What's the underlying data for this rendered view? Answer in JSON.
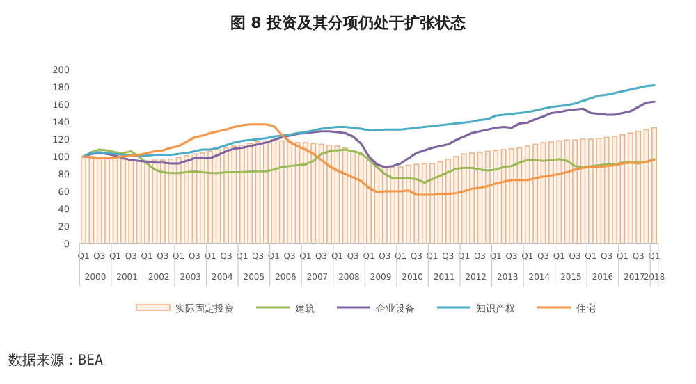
{
  "chart_data": {
    "type": "bar",
    "title": "图 8 投资及其分项仍处于扩张状态",
    "categories": [
      "Q1",
      null,
      "Q3",
      null,
      "Q1",
      null,
      "Q3",
      null,
      "Q1",
      null,
      "Q3",
      null,
      "Q1",
      null,
      "Q3",
      null,
      "Q1",
      null,
      "Q3",
      null,
      "Q1",
      null,
      "Q3",
      null,
      "Q1",
      null,
      "Q3",
      null,
      "Q1",
      null,
      "Q3",
      null,
      "Q1",
      null,
      "Q3",
      null,
      "Q1",
      null,
      "Q3",
      null,
      "Q1",
      null,
      "Q3",
      null,
      "Q1",
      null,
      "Q3",
      null,
      "Q1",
      null,
      "Q3",
      null,
      "Q1",
      null,
      "Q3",
      null,
      "Q1",
      null,
      "Q3",
      null,
      "Q1",
      null,
      "Q3",
      null,
      "Q1",
      null,
      "Q3",
      null,
      "Q1",
      null,
      "Q3",
      null,
      "Q1"
    ],
    "ylim": [
      0,
      200
    ],
    "yticks": [
      0,
      20,
      40,
      60,
      80,
      100,
      120,
      140,
      160,
      180,
      200
    ],
    "legend": "bottom",
    "series": [
      {
        "name": "实际固定投资",
        "color": "#f4b183",
        "values": [
          100,
          100,
          99,
          99,
          98,
          97,
          96,
          95,
          95,
          96,
          96,
          97,
          99,
          101,
          103,
          104,
          106,
          108,
          110,
          112,
          113,
          115,
          117,
          118,
          119,
          118,
          117,
          116,
          116,
          115,
          114,
          113,
          112,
          110,
          107,
          102,
          95,
          91,
          89,
          88,
          88,
          90,
          91,
          92,
          92,
          94,
          97,
          100,
          103,
          104,
          105,
          106,
          107,
          108,
          109,
          110,
          112,
          114,
          116,
          117,
          118,
          119,
          119,
          120,
          120,
          121,
          122,
          123,
          125,
          127,
          129,
          131,
          133
        ]
      },
      {
        "name": "建筑",
        "type": "line",
        "color": "#9bbb59",
        "values": [
          100,
          105,
          108,
          107,
          105,
          104,
          106,
          100,
          92,
          85,
          82,
          81,
          81,
          82,
          83,
          82,
          81,
          81,
          82,
          82,
          82,
          83,
          83,
          83,
          85,
          88,
          89,
          90,
          91,
          95,
          103,
          106,
          107,
          108,
          106,
          104,
          96,
          88,
          80,
          75,
          75,
          75,
          74,
          70,
          74,
          78,
          82,
          86,
          87,
          87,
          85,
          84,
          85,
          88,
          89,
          93,
          96,
          96,
          95,
          96,
          97,
          95,
          89,
          88,
          89,
          90,
          91,
          91,
          93,
          94,
          93,
          94,
          97
        ]
      },
      {
        "name": "企业设备",
        "type": "line",
        "color": "#8064a2",
        "values": [
          100,
          103,
          104,
          103,
          101,
          98,
          96,
          95,
          94,
          93,
          93,
          92,
          92,
          95,
          98,
          99,
          98,
          102,
          106,
          109,
          110,
          112,
          114,
          116,
          119,
          122,
          124,
          126,
          127,
          128,
          129,
          129,
          128,
          127,
          123,
          115,
          100,
          91,
          88,
          89,
          92,
          98,
          104,
          107,
          110,
          112,
          114,
          119,
          123,
          127,
          129,
          131,
          133,
          134,
          133,
          138,
          139,
          143,
          146,
          150,
          151,
          153,
          154,
          155,
          150,
          149,
          148,
          148,
          150,
          152,
          157,
          162,
          163
        ]
      },
      {
        "name": "知识产权",
        "type": "line",
        "color": "#4bacc6",
        "values": [
          100,
          104,
          105,
          104,
          103,
          102,
          101,
          101,
          101,
          102,
          102,
          102,
          103,
          104,
          106,
          108,
          108,
          110,
          113,
          116,
          118,
          119,
          120,
          121,
          123,
          124,
          125,
          127,
          128,
          130,
          132,
          133,
          134,
          134,
          133,
          132,
          130,
          130,
          131,
          131,
          131,
          132,
          133,
          134,
          135,
          136,
          137,
          138,
          139,
          140,
          142,
          143,
          147,
          148,
          149,
          150,
          151,
          153,
          155,
          157,
          158,
          159,
          161,
          164,
          167,
          170,
          171,
          173,
          175,
          177,
          179,
          181,
          182
        ]
      },
      {
        "name": "住宅",
        "type": "line",
        "color": "#f79646",
        "values": [
          100,
          99,
          98,
          98,
          99,
          100,
          101,
          102,
          104,
          106,
          107,
          110,
          112,
          117,
          122,
          124,
          127,
          129,
          131,
          134,
          136,
          137,
          137,
          137,
          135,
          125,
          117,
          112,
          108,
          103,
          96,
          89,
          84,
          80,
          76,
          72,
          64,
          59,
          60,
          60,
          60,
          61,
          56,
          56,
          56,
          57,
          57,
          58,
          60,
          63,
          64,
          66,
          69,
          71,
          73,
          73,
          73,
          75,
          77,
          78,
          80,
          82,
          85,
          87,
          88,
          88,
          89,
          90,
          92,
          93,
          92,
          94,
          96
        ]
      }
    ],
    "annotations": [
      "2000",
      "2001",
      "2002",
      "2003",
      "2004",
      "2005",
      "2006",
      "2007",
      "2008",
      "2009",
      "2010",
      "2011",
      "2012",
      "2013",
      "2014",
      "2015",
      "2016",
      "2017",
      "2018",
      "数据来源：BEA"
    ]
  }
}
